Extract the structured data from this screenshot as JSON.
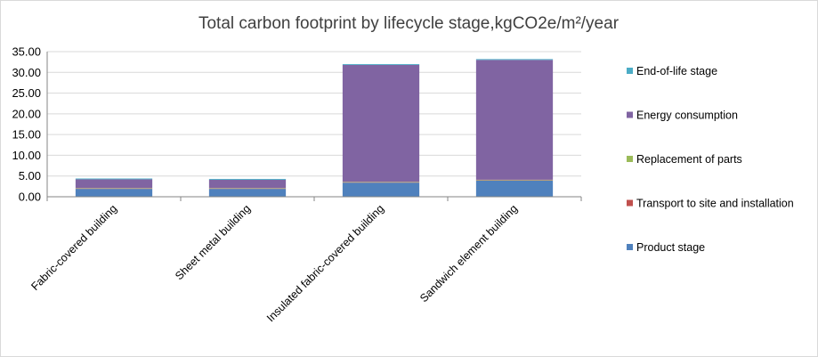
{
  "chart_data": {
    "type": "bar",
    "stacked": true,
    "title": "Total carbon footprint by lifecycle stage,kgCO2e/m²/year",
    "xlabel": "",
    "ylabel": "",
    "ylim": [
      0,
      35
    ],
    "yticks": [
      "0.00",
      "5.00",
      "10.00",
      "15.00",
      "20.00",
      "25.00",
      "30.00",
      "35.00"
    ],
    "grid": true,
    "legend_position": "right",
    "categories": [
      "Fabric-covered building",
      "Sheet metal building",
      "Insulated fabric-covered building",
      "Sandwich element building"
    ],
    "series": [
      {
        "name": "Product stage",
        "color": "#4f81bd",
        "values": [
          1.9,
          1.9,
          3.4,
          3.9
        ]
      },
      {
        "name": "Transport to site and installation",
        "color": "#c0504d",
        "values": [
          0.1,
          0.1,
          0.1,
          0.1
        ]
      },
      {
        "name": "Replacement of parts",
        "color": "#9bbb59",
        "values": [
          0.1,
          0.1,
          0.1,
          0.1
        ]
      },
      {
        "name": "Energy consumption",
        "color": "#8064a2",
        "values": [
          2.1,
          2.0,
          28.2,
          28.9
        ]
      },
      {
        "name": "End-of-life stage",
        "color": "#4bacc6",
        "values": [
          0.2,
          0.2,
          0.2,
          0.2
        ]
      }
    ]
  }
}
